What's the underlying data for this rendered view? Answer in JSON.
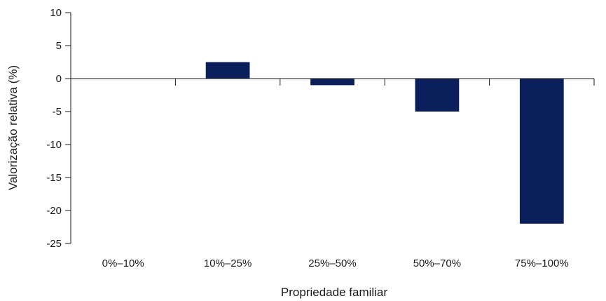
{
  "chart_data": {
    "type": "bar",
    "title": "",
    "xlabel": "Propriedade familiar",
    "ylabel": "Valorização relativa (%)",
    "categories": [
      "0%–10%",
      "10%–25%",
      "25%–50%",
      "50%–70%",
      "75%–100%"
    ],
    "values": [
      0,
      2.5,
      -1,
      -5,
      -22
    ],
    "ylim": [
      -25,
      10
    ],
    "yticks": [
      10,
      5,
      0,
      -5,
      -10,
      -15,
      -20,
      -25
    ],
    "ytick_labels": [
      "10",
      "5",
      "0",
      "-5",
      "-10",
      "-15",
      "-20",
      "-25"
    ],
    "grid": false,
    "legend": "none",
    "bar_color": "#0a1f5c",
    "axis_color": "#1a1a1a"
  }
}
